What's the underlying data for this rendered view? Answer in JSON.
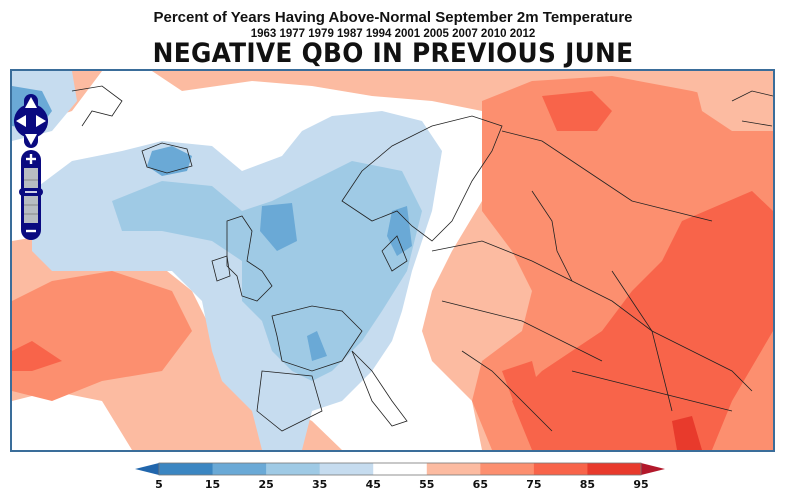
{
  "header": {
    "title": "Percent of Years Having Above-Normal September 2m Temperature",
    "years": "1963 1977 1979 1987 1994 2001 2005 2007 2010 2012",
    "subtitle": "NEGATIVE QBO IN PREVIOUS JUNE"
  },
  "map": {
    "region": "Europe / North Atlantic",
    "variable": "Percent of years with above-normal September 2m temperature"
  },
  "controls": {
    "pan": [
      "pan-up",
      "pan-left",
      "pan-right",
      "pan-down"
    ],
    "zoom_in_label": "+",
    "zoom_out_label": "−"
  },
  "colorbar": {
    "ticks": [
      "5",
      "15",
      "25",
      "35",
      "45",
      "55",
      "65",
      "75",
      "85",
      "95"
    ],
    "colors": [
      "#3b86c2",
      "#6aa9d6",
      "#9fcae5",
      "#c6dcef",
      "#ffffff",
      "#fcbba1",
      "#fc8f6f",
      "#f8644a",
      "#e83a2c"
    ],
    "under_color": "#2166ac",
    "over_color": "#b2182b"
  },
  "chart_data": {
    "type": "heatmap",
    "title": "Percent of Years Having Above-Normal September 2m Temperature",
    "subtitle": "NEGATIVE QBO IN PREVIOUS JUNE",
    "levels": [
      5,
      15,
      25,
      35,
      45,
      55,
      65,
      75,
      85,
      95
    ],
    "units": "%",
    "extend": "both",
    "colorbar_placement": "bottom"
  }
}
